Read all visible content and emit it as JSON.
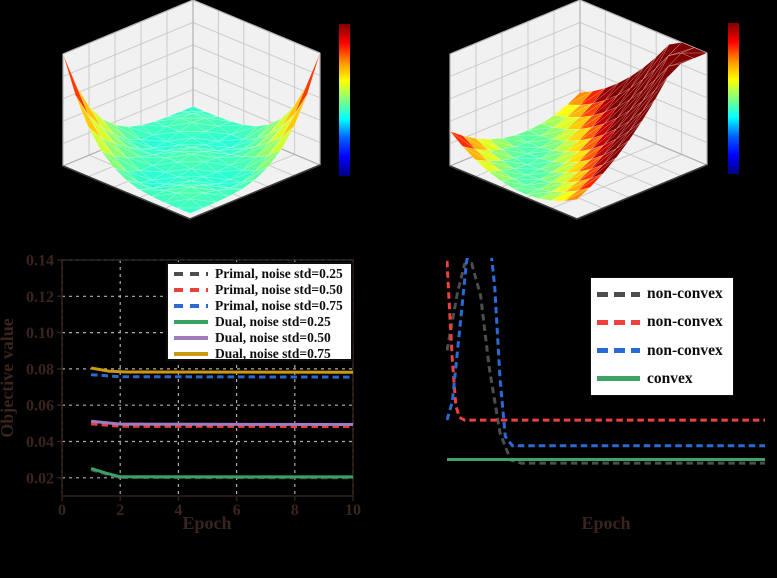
{
  "palette": {
    "background": "#000000",
    "pane": "#f2f1f2",
    "pane_grid": "#cccacc",
    "pane_edge": "#b2b0b2",
    "floor_front_edge": "#3c3c3c",
    "grid": "#b2ada6",
    "tick_text": "#3a241c",
    "spine": "#2f211a",
    "legend_text": "#0d0d0d",
    "legend_bg": "#ffffff"
  },
  "chart_data": [
    {
      "type": "surface_3d",
      "name": "non-convex objective surface",
      "colormap": "jet",
      "shape": "rippled quartic bowl, high spikes at left and right back corners, wavy teal valley with small center bump (non-convex)",
      "colorbar": {
        "orientation": "vertical",
        "tick_labels": []
      },
      "params": {
        "kind": "nonconvex",
        "color_low": 0.4,
        "color_span": 0.5,
        "z_cap": 0.85,
        "mesh_n": 10
      }
    },
    {
      "type": "surface_3d",
      "name": "convex objective surface",
      "colormap": "jet",
      "shape": "anisotropic convex quadratic valley, teal floor rising to a large dark-red ridge at the right corner and a small red spike at the left corner",
      "colorbar": {
        "orientation": "vertical",
        "tick_labels": []
      },
      "params": {
        "kind": "convex",
        "color_low": 0.42,
        "color_span": 0.58,
        "z_cap": 0.32,
        "mesh_n": 10
      }
    },
    {
      "type": "line",
      "xlabel": "Epoch",
      "ylabel": "Objective value",
      "xlim": [
        0,
        10
      ],
      "ylim": [
        0.01,
        0.14
      ],
      "xticks": [
        0,
        2,
        4,
        6,
        8,
        10
      ],
      "xtick_labels": [
        "0",
        "2",
        "4",
        "6",
        "8",
        "10"
      ],
      "ytick_values": [
        0.02,
        0.04,
        0.06,
        0.08,
        0.1,
        0.12,
        0.14
      ],
      "ytick_labels": [
        "0.02",
        "0.04",
        "0.06",
        "0.08",
        "0.10",
        "0.12",
        "0.14"
      ],
      "grid": true,
      "legend_position": "upper right",
      "series": [
        {
          "name": "Primal, noise std=0.25",
          "color": "#4d4d4d",
          "style": "dashed",
          "x": [
            1,
            1.5,
            2,
            10
          ],
          "y": [
            0.0245,
            0.0222,
            0.0202,
            0.02
          ]
        },
        {
          "name": "Primal, noise std=0.50",
          "color": "#e8413a",
          "style": "dashed",
          "x": [
            1,
            2,
            10
          ],
          "y": [
            0.0497,
            0.0484,
            0.0483
          ]
        },
        {
          "name": "Primal, noise std=0.75",
          "color": "#2b68cf",
          "style": "dashed",
          "x": [
            1,
            2,
            10
          ],
          "y": [
            0.0768,
            0.0757,
            0.0755
          ]
        },
        {
          "name": "Dual, noise std=0.25",
          "color": "#39a263",
          "style": "solid",
          "x": [
            1,
            1.5,
            2,
            10
          ],
          "y": [
            0.0252,
            0.0226,
            0.0206,
            0.0205
          ]
        },
        {
          "name": "Dual, noise std=0.50",
          "color": "#a17bbf",
          "style": "solid",
          "x": [
            1,
            2,
            10
          ],
          "y": [
            0.0512,
            0.0496,
            0.0494
          ]
        },
        {
          "name": "Dual, noise std=0.75",
          "color": "#cc9a12",
          "style": "solid",
          "x": [
            1,
            1.6,
            2.2,
            10
          ],
          "y": [
            0.0805,
            0.0788,
            0.0783,
            0.0782
          ]
        }
      ]
    },
    {
      "type": "line",
      "xlabel": "Epoch",
      "xlim": [
        1,
        10
      ],
      "ylim": [
        0.01,
        0.14
      ],
      "grid": false,
      "legend_position": "upper right",
      "series": [
        {
          "name": "non-convex",
          "color": "#4d4d4d",
          "style": "dashed",
          "x": [
            1,
            1.3,
            1.5,
            1.7,
            1.95,
            2.2,
            2.5,
            2.8,
            3.1,
            10
          ],
          "y": [
            0.09,
            0.122,
            0.1372,
            0.1375,
            0.12,
            0.08,
            0.045,
            0.0302,
            0.0285,
            0.0285
          ]
        },
        {
          "name": "non-convex",
          "color": "#ee4040",
          "style": "dashed",
          "x": [
            1,
            1.05,
            1.15,
            1.25,
            1.35,
            1.5,
            10
          ],
          "y": [
            0.139,
            0.12,
            0.085,
            0.06,
            0.0535,
            0.052,
            0.052
          ]
        },
        {
          "name": "non-convex",
          "color": "#2a6ad4",
          "style": "dashed",
          "x": [
            1,
            1.15,
            1.35,
            1.55,
            1.7,
            2.2,
            2.35,
            2.5,
            2.65,
            2.85,
            10
          ],
          "y": [
            0.052,
            0.062,
            0.1,
            0.138,
            0.152,
            0.152,
            0.125,
            0.075,
            0.043,
            0.038,
            0.038
          ]
        },
        {
          "name": "convex",
          "color": "#3fa368",
          "style": "solid",
          "x": [
            1,
            10
          ],
          "y": [
            0.0305,
            0.0305
          ]
        }
      ]
    }
  ]
}
